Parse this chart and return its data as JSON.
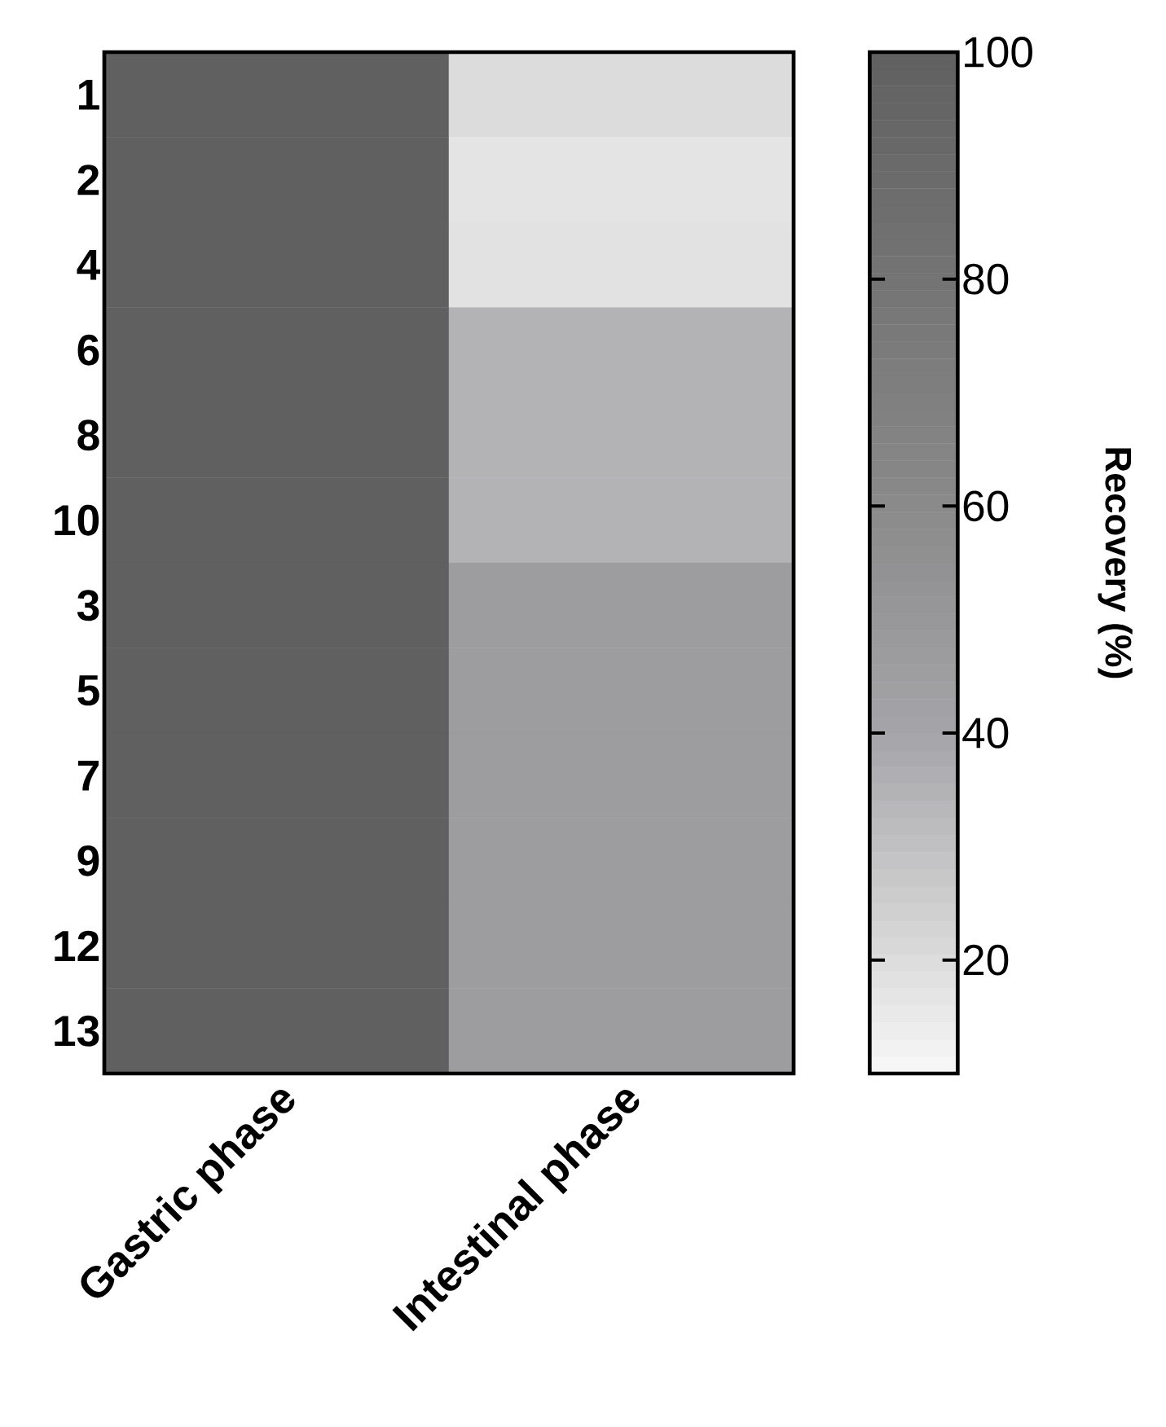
{
  "chart_data": {
    "type": "heatmap",
    "clabel": "Recovery (%)",
    "categories": [
      "Gastric phase",
      "Intestinal phase"
    ],
    "y_categories": [
      "1",
      "2",
      "4",
      "6",
      "8",
      "10",
      "3",
      "5",
      "7",
      "9",
      "12",
      "13"
    ],
    "cells": [
      [
        100,
        20
      ],
      [
        100,
        17
      ],
      [
        100,
        18
      ],
      [
        100,
        35
      ],
      [
        100,
        35
      ],
      [
        100,
        35
      ],
      [
        100,
        46
      ],
      [
        100,
        46
      ],
      [
        100,
        46
      ],
      [
        100,
        46
      ],
      [
        100,
        46
      ],
      [
        100,
        46
      ]
    ],
    "clim": [
      10,
      100
    ],
    "cticks": [
      20,
      40,
      60,
      80,
      100
    ]
  }
}
